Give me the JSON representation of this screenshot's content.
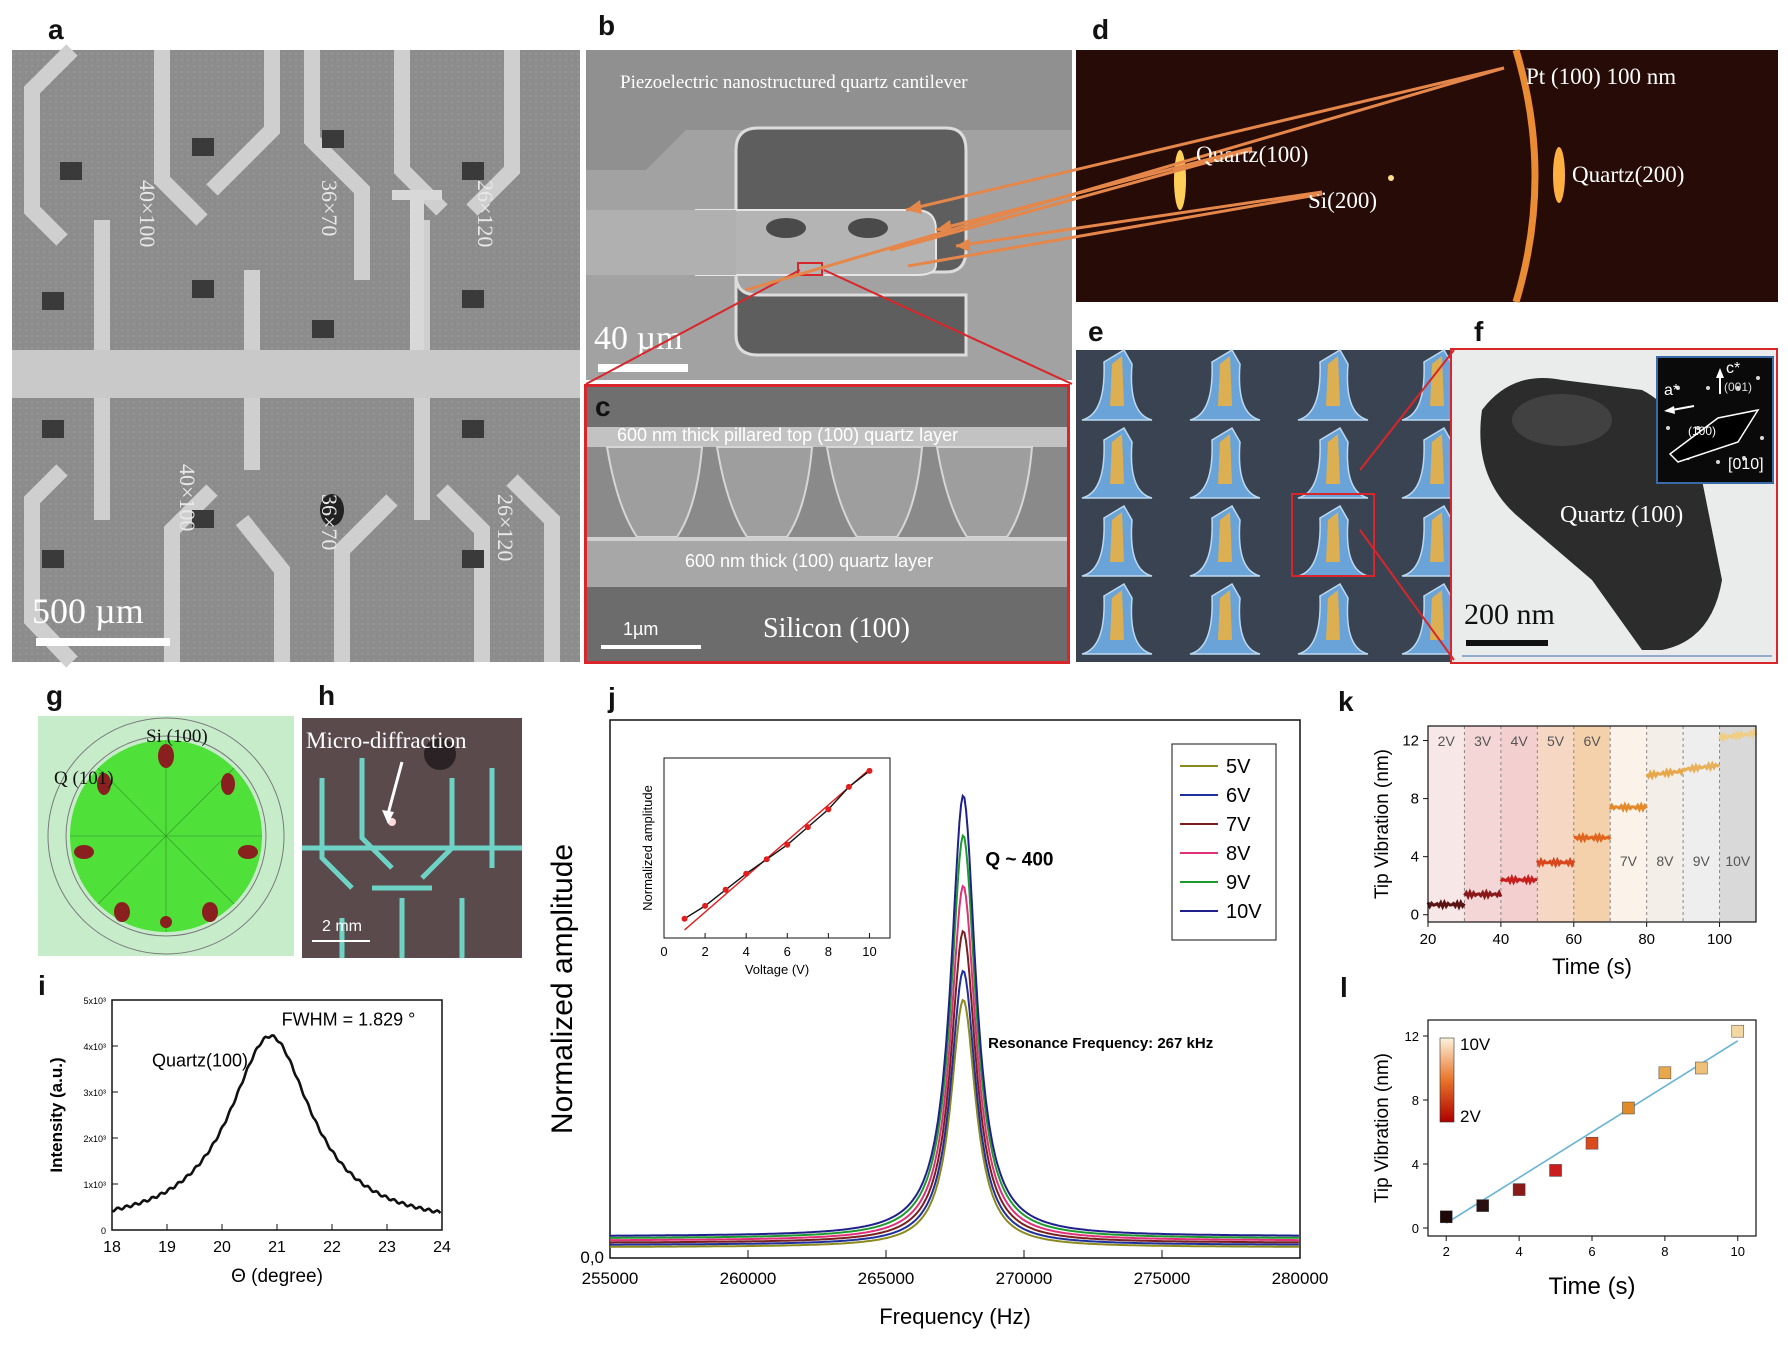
{
  "panels": {
    "a": {
      "letter": "a",
      "scale": "500 µm",
      "labels": [
        "40×100",
        "36×70",
        "26×120",
        "40×100",
        "36×70",
        "26×120"
      ]
    },
    "b": {
      "letter": "b",
      "title": "Piezoelectric nanostructured quartz cantilever",
      "scale": "40 µm"
    },
    "c": {
      "letter": "c",
      "top": "600 nm thick pillared top (100) quartz layer",
      "mid": "600 nm thick (100) quartz layer",
      "scale": "1µm",
      "substrate": "Silicon (100)"
    },
    "d": {
      "letter": "d",
      "pt": "Pt (100) 100 nm",
      "q100": "Quartz(100)",
      "si": "Si(200)",
      "q200": "Quartz(200)"
    },
    "e": {
      "letter": "e"
    },
    "f": {
      "letter": "f",
      "label": "Quartz (100)",
      "scale": "200 nm",
      "inset": {
        "c": "c*",
        "c_idx": "(001)",
        "a": "a*",
        "a_idx": "(100)",
        "zone": "[010]"
      }
    },
    "g": {
      "letter": "g",
      "si": "Si (100)",
      "q": "Q (101)"
    },
    "h": {
      "letter": "h",
      "label": "Micro-diffraction",
      "scale": "2 mm"
    },
    "i": {
      "letter": "i",
      "k": "k",
      "l": "l"
    }
  },
  "colors": {
    "gray_sem": "#8f8f8f",
    "pt_ring": "#ff9a3a",
    "red_box": "#d8262a",
    "green_pole": "#4fe03a"
  },
  "chart_data": [
    {
      "id": "i",
      "type": "line",
      "title": "",
      "xlabel": "Θ (degree)",
      "ylabel": "Intensity (a.u.)",
      "xlim": [
        18,
        24
      ],
      "ylim": [
        0,
        5
      ],
      "xticks": [
        "18",
        "19",
        "20",
        "21",
        "22",
        "23",
        "24"
      ],
      "yticks": [
        "0",
        "1x10³",
        "2x10³",
        "3x10³",
        "4x10³",
        "5x10³"
      ],
      "peak_label": "Quartz(100)",
      "annotation": "FWHM = 1.829 °",
      "series": [
        {
          "center": 20.88,
          "fwhm": 1.829,
          "peak": 4.3,
          "baseline": 0.05
        }
      ]
    },
    {
      "id": "j",
      "type": "line",
      "title": "",
      "xlabel": "Frequency (Hz)",
      "ylabel": "Normalized amplitude",
      "xlim": [
        255000,
        280000
      ],
      "ylim": [
        0,
        1
      ],
      "xticks": [
        "255000",
        "260000",
        "265000",
        "270000",
        "275000",
        "280000"
      ],
      "yticks": [
        "0,0"
      ],
      "center": 267800,
      "annotations": {
        "q": "Q ~ 400",
        "res": "Resonance Frequency: 267 kHz"
      },
      "series": [
        {
          "name": "5V",
          "color": "#8a8a1f",
          "peak": 0.46
        },
        {
          "name": "6V",
          "color": "#1f2f9c",
          "peak": 0.51
        },
        {
          "name": "7V",
          "color": "#7a1f1f",
          "peak": 0.58
        },
        {
          "name": "8V",
          "color": "#e0307a",
          "peak": 0.66
        },
        {
          "name": "9V",
          "color": "#1f9a2f",
          "peak": 0.75
        },
        {
          "name": "10V",
          "color": "#20208c",
          "peak": 0.82
        }
      ],
      "inset": {
        "xlabel": "Voltage (V)",
        "ylabel": "Normalized amplitude",
        "xlim": [
          0,
          11
        ],
        "xticks": [
          "0",
          "2",
          "4",
          "6",
          "8",
          "10"
        ],
        "x": [
          1,
          2,
          3,
          4,
          5,
          6,
          7,
          8,
          9,
          10
        ],
        "y": [
          0.12,
          0.2,
          0.3,
          0.4,
          0.49,
          0.58,
          0.69,
          0.8,
          0.94,
          1.04
        ]
      }
    },
    {
      "id": "k",
      "type": "line",
      "title": "",
      "xlabel": "Time (s)",
      "ylabel": "Tip Vibration (nm)",
      "xlim": [
        20,
        110
      ],
      "ylim": [
        -0.5,
        13
      ],
      "xticks": [
        "20",
        "40",
        "60",
        "80",
        "100"
      ],
      "yticks": [
        "0",
        "4",
        "8",
        "12"
      ],
      "steps": [
        {
          "label": "2V",
          "x0": 20,
          "x1": 30,
          "y": 0.7
        },
        {
          "label": "3V",
          "x0": 30,
          "x1": 40,
          "y": 1.4
        },
        {
          "label": "4V",
          "x0": 40,
          "x1": 50,
          "y": 2.4
        },
        {
          "label": "5V",
          "x0": 50,
          "x1": 60,
          "y": 3.6
        },
        {
          "label": "6V",
          "x0": 60,
          "x1": 70,
          "y": 5.3
        },
        {
          "label": "7V",
          "x0": 70,
          "x1": 80,
          "y": 7.4
        },
        {
          "label": "8V",
          "x0": 80,
          "x1": 90,
          "y": 9.6
        },
        {
          "label": "9V",
          "x0": 90,
          "x1": 100,
          "y": 10.0
        },
        {
          "label": "10V",
          "x0": 100,
          "x1": 110,
          "y": 12.2
        }
      ]
    },
    {
      "id": "l",
      "type": "scatter",
      "title": "",
      "xlabel": "Time (s)",
      "ylabel": "Tip Vibration (nm)",
      "xlim": [
        1.5,
        10.5
      ],
      "ylim": [
        -0.5,
        13
      ],
      "xticks": [
        "2",
        "4",
        "6",
        "8",
        "10"
      ],
      "yticks": [
        "0",
        "4",
        "8",
        "12"
      ],
      "x": [
        2,
        3,
        4,
        5,
        6,
        7,
        8,
        9,
        10
      ],
      "y": [
        0.7,
        1.4,
        2.4,
        3.6,
        5.3,
        7.5,
        9.7,
        10.0,
        12.3
      ],
      "colorbar": {
        "max": "10V",
        "min": "2V"
      }
    }
  ]
}
